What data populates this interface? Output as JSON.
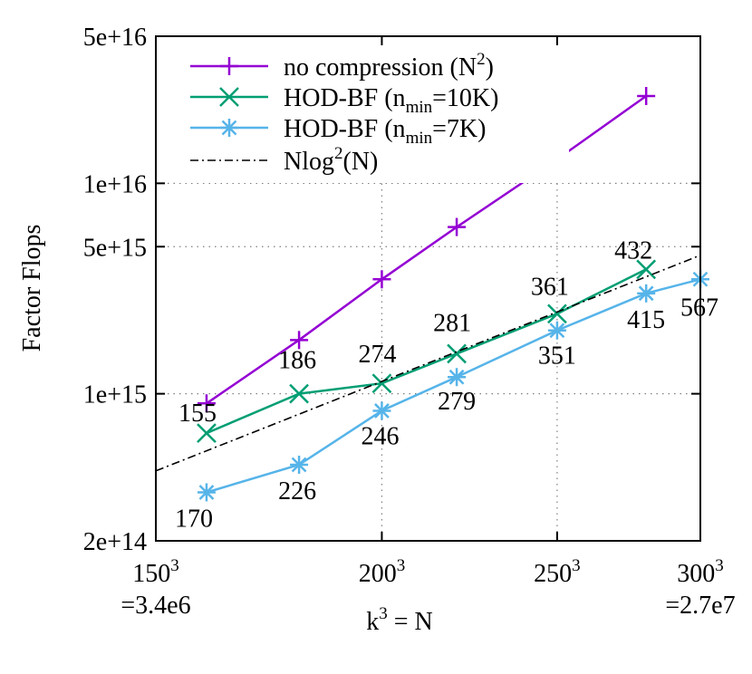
{
  "chart_data": {
    "type": "line",
    "ylabel": "Factor Flops",
    "xlabel": {
      "base": "k",
      "sup": "3",
      "rest": " = N"
    },
    "x_scale": "log",
    "y_scale": "log",
    "xlim": [
      3375000,
      27000000
    ],
    "ylim": [
      200000000000000.0,
      5e+16
    ],
    "grid": true,
    "legend_position": "top-left",
    "x_ticks": [
      {
        "value": 3375000,
        "base": "150",
        "sup": "3",
        "sub": "=3.4e6"
      },
      {
        "value": 8000000,
        "base": "200",
        "sup": "3",
        "sub": ""
      },
      {
        "value": 15625000,
        "base": "250",
        "sup": "3",
        "sub": ""
      },
      {
        "value": 27000000,
        "base": "300",
        "sup": "3",
        "sub": "=2.7e7"
      }
    ],
    "y_ticks": [
      {
        "value": 200000000000000.0,
        "label": "2e+14"
      },
      {
        "value": 1000000000000000.0,
        "label": "1e+15"
      },
      {
        "value": 5000000000000000.0,
        "label": "5e+15"
      },
      {
        "value": 1e+16,
        "label": "1e+16"
      },
      {
        "value": 5e+16,
        "label": "5e+16"
      }
    ],
    "x": [
      4096000,
      5832000,
      8000000,
      10648000,
      15625000,
      21952000,
      27000000
    ],
    "series": [
      {
        "name": {
          "text": "no compression (N",
          "sub": "",
          "sup": "2",
          "tail": ")"
        },
        "color": "#9400d3",
        "marker": "plus",
        "values": [
          900000000000000.0,
          1800000000000000.0,
          3500000000000000.0,
          6200000000000000.0,
          1.3e+16,
          2.6e+16,
          null
        ],
        "labels": []
      },
      {
        "name": {
          "text": "HOD-BF (n",
          "sub": "min",
          "sup": "",
          "tail": "=10K)"
        },
        "color": "#009e73",
        "marker": "x",
        "values": [
          650000000000000.0,
          1000000000000000.0,
          1120000000000000.0,
          1550000000000000.0,
          2400000000000000.0,
          3900000000000000.0,
          null
        ],
        "labels": [
          "155",
          "186",
          "274",
          "281",
          "361",
          "432",
          ""
        ]
      },
      {
        "name": {
          "text": "HOD-BF (n",
          "sub": "min",
          "sup": "",
          "tail": "=7K)"
        },
        "color": "#56b4e9",
        "marker": "star",
        "values": [
          340000000000000.0,
          460000000000000.0,
          830000000000000.0,
          1200000000000000.0,
          2000000000000000.0,
          3000000000000000.0,
          3500000000000000.0
        ],
        "labels": [
          "170",
          "226",
          "246",
          "279",
          "351",
          "415",
          "567"
        ]
      },
      {
        "name": {
          "text": "Nlog",
          "sub": "",
          "sup": "2",
          "tail": "(N)"
        },
        "color": "#000000",
        "marker": "none",
        "dash": "dashdot",
        "x": [
          3375000,
          27000000
        ],
        "values": [
          430000000000000.0,
          4550000000000000.0
        ],
        "labels": []
      }
    ]
  }
}
